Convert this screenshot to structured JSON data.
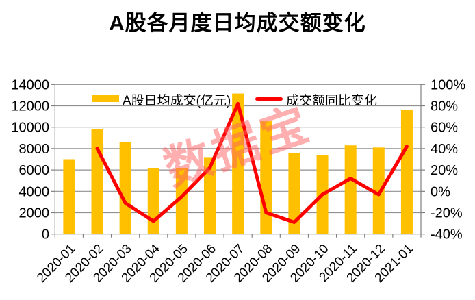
{
  "chart_data": {
    "type": "bar+line",
    "title": "A股各月度日均成交额变化",
    "categories": [
      "2020-01",
      "2020-02",
      "2020-03",
      "2020-04",
      "2020-05",
      "2020-06",
      "2020-07",
      "2020-08",
      "2020-09",
      "2020-10",
      "2020-11",
      "2020-12",
      "2021-01"
    ],
    "series": [
      {
        "name": "A股日均成交(亿元)",
        "type": "bar",
        "axis": "left",
        "color": "#FFC000",
        "values": [
          7000,
          9800,
          8600,
          6200,
          6150,
          7200,
          13150,
          10550,
          7550,
          7400,
          8300,
          8100,
          11600
        ]
      },
      {
        "name": "成交额同比变化",
        "type": "line",
        "axis": "right",
        "color": "#FF0000",
        "values": [
          null,
          40,
          -11,
          -28,
          -5,
          22,
          82,
          -20,
          -29,
          -3,
          12,
          -3,
          42
        ]
      }
    ],
    "left_axis": {
      "min": 0,
      "max": 14000,
      "step": 2000,
      "ticks": [
        "0",
        "2000",
        "4000",
        "6000",
        "8000",
        "10000",
        "12000",
        "14000"
      ]
    },
    "right_axis": {
      "min": -40,
      "max": 100,
      "step": 20,
      "ticks": [
        "-40%",
        "-20%",
        "0%",
        "20%",
        "40%",
        "60%",
        "80%",
        "100%"
      ]
    },
    "legend": [
      {
        "label": "A股日均成交(亿元)",
        "color": "#FFC000",
        "marker": "bar-swatch"
      },
      {
        "label": "成交额同比变化",
        "color": "#FF0000",
        "marker": "line-swatch"
      }
    ],
    "legend_position": "top",
    "grid": "horizontal",
    "watermark": "数据宝"
  },
  "colors": {
    "bar": "#FFC000",
    "line": "#FF0000",
    "grid": "#919191",
    "axis": "#7F7F7F",
    "text": "#000000",
    "watermark": "rgba(255,96,96,0.5)",
    "background": "#FFFFFF"
  }
}
